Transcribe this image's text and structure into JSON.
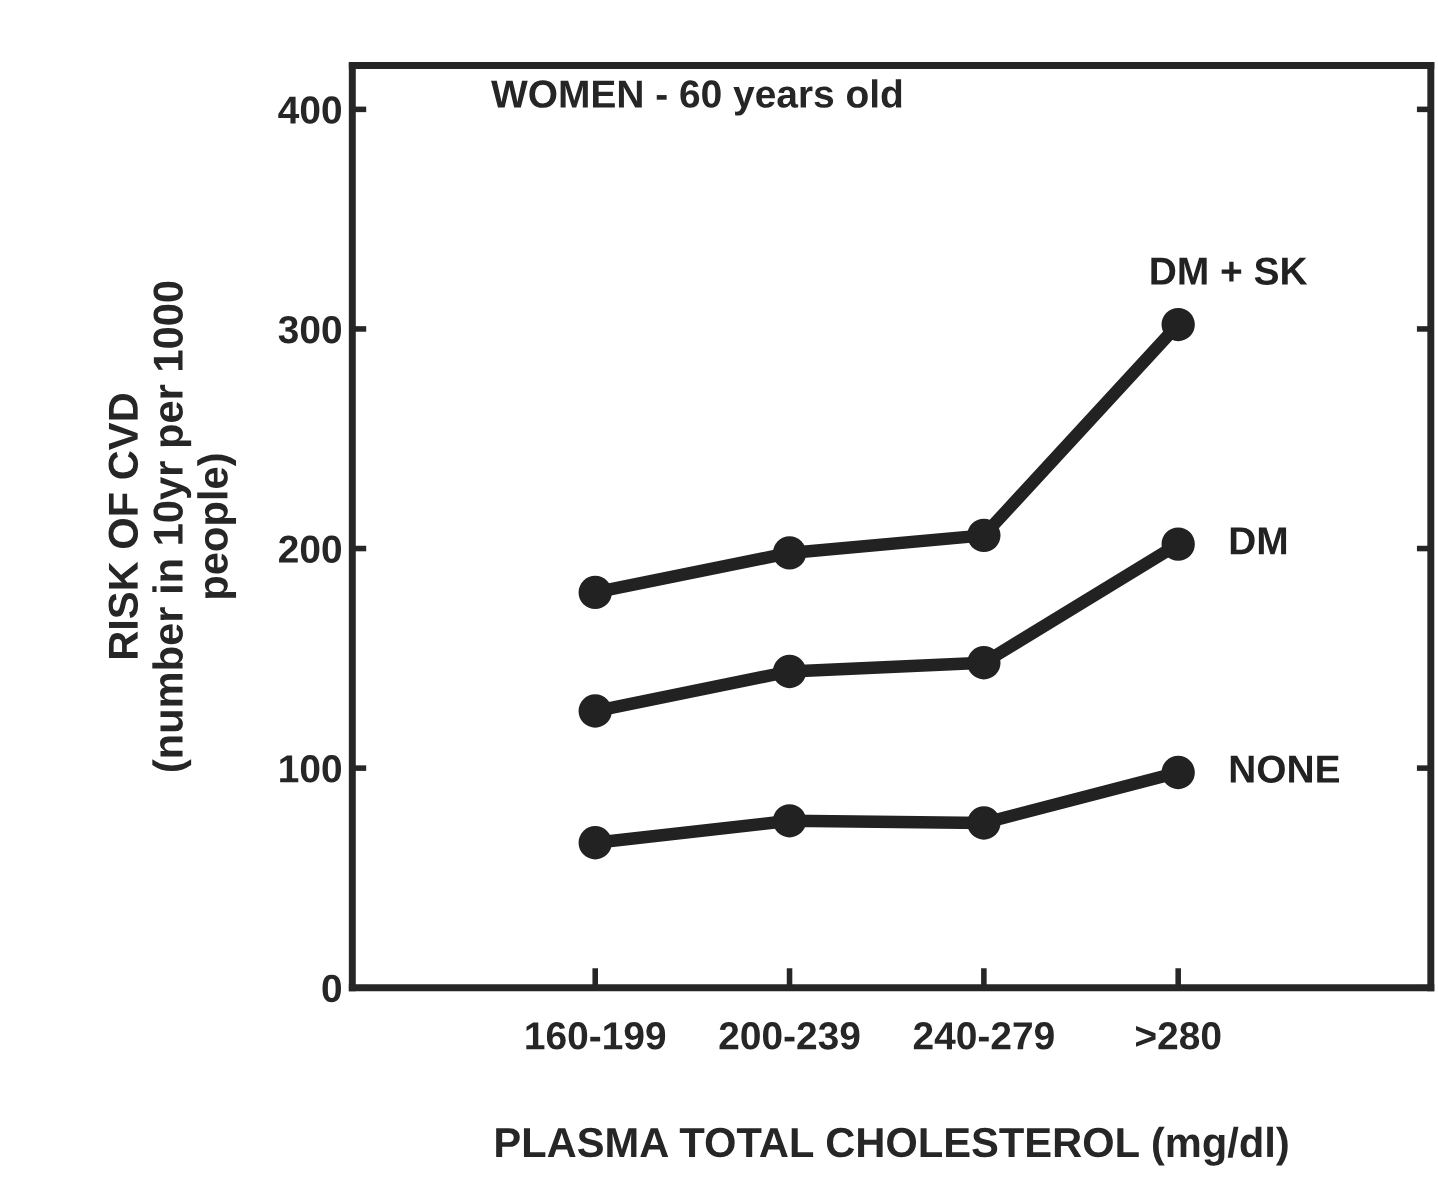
{
  "chart_data": {
    "type": "line",
    "title": "WOMEN - 60 years old",
    "xlabel": "PLASMA TOTAL CHOLESTEROL (mg/dl)",
    "ylabel": "RISK OF CVD\n(number in 10yr per 1000\npeople)",
    "categories": [
      "160-199",
      "200-239",
      "240-279",
      ">280"
    ],
    "series": [
      {
        "name": "DM + SK",
        "color": "#222222",
        "values": [
          180,
          198,
          206,
          302
        ]
      },
      {
        "name": "DM",
        "color": "#222222",
        "values": [
          126,
          144,
          148,
          202
        ]
      },
      {
        "name": "NONE",
        "color": "#222222",
        "values": [
          66,
          76,
          75,
          98
        ]
      }
    ],
    "ylim": [
      0,
      420
    ],
    "yticks": [
      0,
      100,
      200,
      300,
      400
    ],
    "marker": "circle",
    "line_style": "solid",
    "grid": false,
    "legend": "right"
  }
}
